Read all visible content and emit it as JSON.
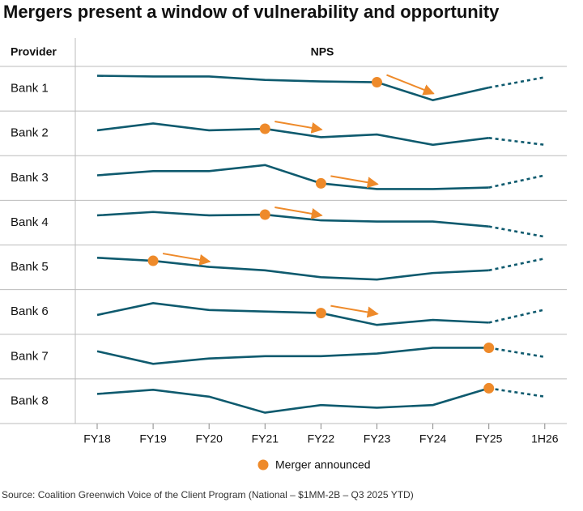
{
  "chart_data": {
    "type": "line",
    "title": "Mergers present a window of vulnerability and opportunity",
    "row_header": "Provider",
    "value_header": "NPS",
    "categories": [
      "FY18",
      "FY19",
      "FY20",
      "FY21",
      "FY22",
      "FY23",
      "FY24",
      "FY25",
      "1H26"
    ],
    "ylim": [
      0,
      10
    ],
    "line_color": "#0e5a6e",
    "marker_color": "#ee8a2a",
    "dashed_final_segment": true,
    "legend_label": "Merger announced",
    "series": [
      {
        "name": "Bank 1",
        "values": [
          8.4,
          8.2,
          8.2,
          7.3,
          6.9,
          6.7,
          2.0,
          5.3,
          8.0
        ],
        "merger_at": "FY23"
      },
      {
        "name": "Bank 2",
        "values": [
          5.8,
          7.6,
          5.8,
          6.2,
          4.0,
          4.7,
          2.0,
          3.8,
          2.0
        ],
        "merger_at": "FY21"
      },
      {
        "name": "Bank 3",
        "values": [
          5.7,
          6.8,
          6.8,
          8.4,
          3.6,
          2.1,
          2.1,
          2.5,
          5.7
        ],
        "merger_at": "FY22"
      },
      {
        "name": "Bank 4",
        "values": [
          6.9,
          7.8,
          6.9,
          7.1,
          5.6,
          5.3,
          5.3,
          4.0,
          1.3
        ],
        "merger_at": "FY21"
      },
      {
        "name": "Bank 5",
        "values": [
          7.5,
          6.7,
          5.1,
          4.2,
          2.4,
          1.8,
          3.5,
          4.2,
          7.3
        ],
        "merger_at": "FY19"
      },
      {
        "name": "Bank 6",
        "values": [
          4.2,
          7.3,
          5.5,
          5.1,
          4.7,
          1.6,
          2.9,
          2.2,
          5.6
        ],
        "merger_at": "FY22"
      },
      {
        "name": "Bank 7",
        "values": [
          6.4,
          3.1,
          4.5,
          5.1,
          5.1,
          5.8,
          7.3,
          7.3,
          4.9
        ],
        "merger_at": "FY25"
      },
      {
        "name": "Bank 8",
        "values": [
          6.9,
          8.0,
          6.2,
          2.0,
          4.0,
          3.3,
          4.0,
          8.4,
          6.2
        ],
        "merger_at": "FY25"
      }
    ],
    "source": "Source: Coalition Greenwich Voice of the Client Program (National – $1MM-2B – Q3 2025 YTD)"
  }
}
